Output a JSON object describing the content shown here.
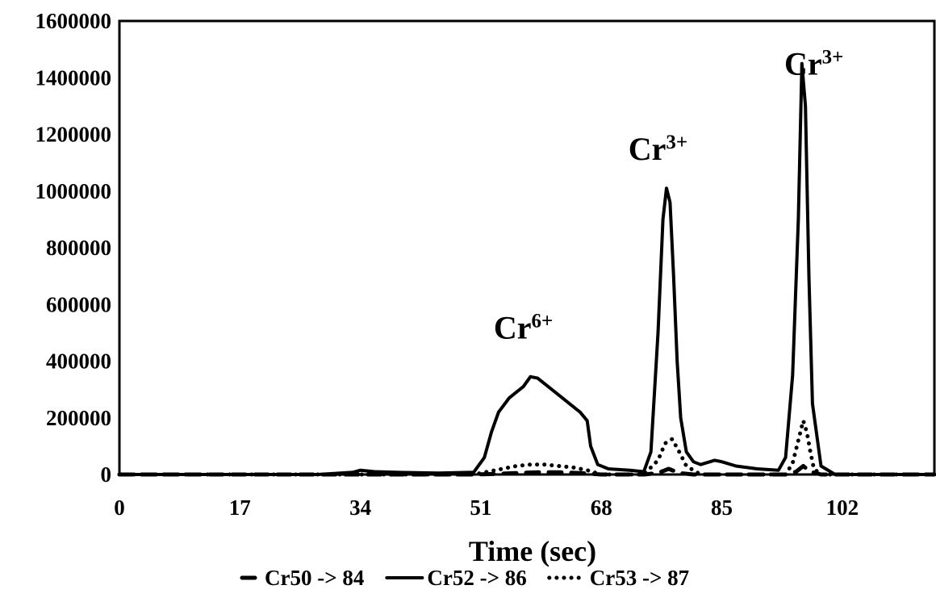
{
  "chart_data": {
    "type": "line",
    "title": "",
    "xlabel": "Time (sec)",
    "ylabel": "",
    "xlim": [
      0,
      115
    ],
    "ylim": [
      0,
      1600000
    ],
    "x_ticks": [
      "0",
      "17",
      "34",
      "51",
      "68",
      "85",
      "102"
    ],
    "y_ticks": [
      "0",
      "200000",
      "400000",
      "600000",
      "800000",
      "1000000",
      "1200000",
      "1400000",
      "1600000"
    ],
    "grid": false,
    "legend_position": "bottom",
    "annotations": [
      {
        "label": "Cr",
        "sup": "6+",
        "x": 57,
        "y": 480000
      },
      {
        "label": "Cr",
        "sup": "3+",
        "x": 76,
        "y": 1110000
      },
      {
        "label": "Cr",
        "sup": "3+",
        "x": 98,
        "y": 1410000
      }
    ],
    "series": [
      {
        "name": "Cr50 -> 84",
        "style": "dashed",
        "color": "#000000",
        "x": [
          0,
          50,
          53,
          56,
          59,
          62,
          65,
          68,
          74,
          76,
          77.5,
          79,
          81,
          94,
          95.5,
          96.5,
          97.5,
          99,
          102,
          115
        ],
        "y": [
          0,
          0,
          2000,
          5000,
          8000,
          8000,
          5000,
          0,
          0,
          5000,
          20000,
          5000,
          0,
          0,
          10000,
          30000,
          10000,
          0,
          0,
          0
        ]
      },
      {
        "name": "Cr52 -> 86",
        "style": "solid",
        "color": "#000000",
        "x": [
          0,
          28,
          33,
          34,
          36,
          40,
          45,
          50,
          51.5,
          52.5,
          53.5,
          55,
          57,
          58,
          59,
          60,
          62,
          64,
          65,
          66,
          66.5,
          67.5,
          69,
          72,
          74,
          75,
          76,
          76.7,
          77.2,
          77.7,
          78.2,
          78.7,
          79.2,
          80,
          81,
          82,
          84,
          85,
          87,
          90,
          93,
          94,
          95,
          95.8,
          96.3,
          96.8,
          97.3,
          97.8,
          99,
          101,
          115
        ],
        "y": [
          0,
          0,
          8000,
          15000,
          10000,
          7000,
          5000,
          8000,
          60000,
          150000,
          220000,
          270000,
          310000,
          345000,
          340000,
          320000,
          280000,
          240000,
          220000,
          190000,
          100000,
          35000,
          20000,
          15000,
          10000,
          80000,
          500000,
          900000,
          1010000,
          960000,
          700000,
          400000,
          200000,
          80000,
          45000,
          35000,
          50000,
          45000,
          30000,
          20000,
          15000,
          60000,
          350000,
          900000,
          1450000,
          1300000,
          700000,
          250000,
          30000,
          0,
          0
        ]
      },
      {
        "name": "Cr53 -> 87",
        "style": "dotted",
        "color": "#000000",
        "x": [
          0,
          50,
          52,
          54,
          56,
          58,
          60,
          62,
          64,
          66,
          68,
          74,
          76,
          77,
          78,
          79,
          80,
          82,
          94,
          95,
          96,
          96.5,
          97,
          97.5,
          98,
          99,
          102,
          115
        ],
        "y": [
          0,
          0,
          10000,
          20000,
          30000,
          35000,
          35000,
          30000,
          25000,
          15000,
          0,
          0,
          50000,
          110000,
          125000,
          80000,
          30000,
          0,
          0,
          40000,
          140000,
          190000,
          150000,
          80000,
          20000,
          0,
          0,
          0
        ]
      }
    ]
  }
}
